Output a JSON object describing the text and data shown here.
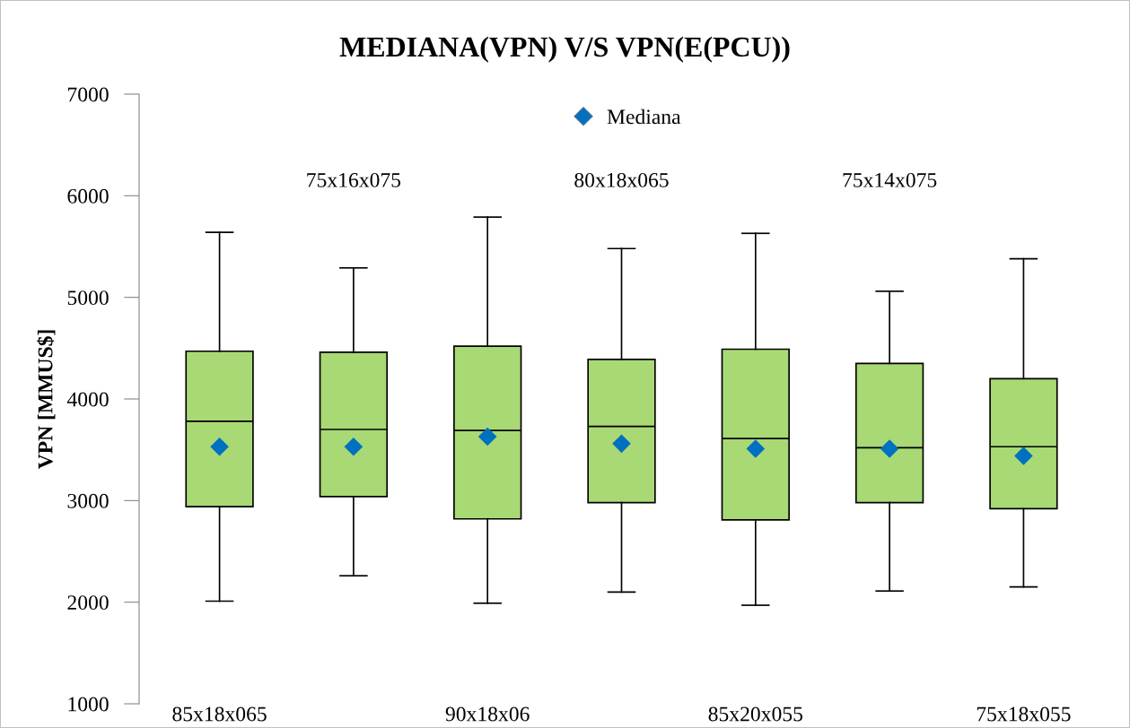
{
  "chart_data": {
    "type": "box",
    "title": "MEDIANA(VPN) V/S VPN(E(PCU))",
    "ylabel": "VPN [MMUS$]",
    "categories": [
      "85x18x065",
      "75x16x075",
      "90x18x06",
      "80x18x065",
      "85x20x055",
      "75x14x075",
      "75x18x055"
    ],
    "ylim": [
      1000,
      7000
    ],
    "yticks": [
      1000,
      2000,
      3000,
      4000,
      5000,
      6000,
      7000
    ],
    "grid": false,
    "legend": "top",
    "series": [
      {
        "color": "#a9d975",
        "boxes": [
          {
            "low": 2010,
            "q1": 2940,
            "median": 3780,
            "q3": 4470,
            "high": 5640
          },
          {
            "low": 2260,
            "q1": 3040,
            "median": 3700,
            "q3": 4460,
            "high": 5290
          },
          {
            "low": 1990,
            "q1": 2820,
            "median": 3690,
            "q3": 4520,
            "high": 5790
          },
          {
            "low": 2100,
            "q1": 2980,
            "median": 3730,
            "q3": 4390,
            "high": 5480
          },
          {
            "low": 1970,
            "q1": 2810,
            "median": 3610,
            "q3": 4490,
            "high": 5630
          },
          {
            "low": 2110,
            "q1": 2980,
            "median": 3520,
            "q3": 4350,
            "high": 5060
          },
          {
            "low": 2150,
            "q1": 2920,
            "median": 3530,
            "q3": 4200,
            "high": 5380
          }
        ]
      },
      {
        "type": "scatter",
        "name": "Mediana",
        "color": "#0070c0",
        "marker": "diamond",
        "x": [
          "85x18x065",
          "75x16x075",
          "90x18x06",
          "80x18x065",
          "85x20x055",
          "75x14x075",
          "75x18x055"
        ],
        "values": [
          3530,
          3530,
          3630,
          3560,
          3510,
          3510,
          3440
        ]
      }
    ]
  }
}
